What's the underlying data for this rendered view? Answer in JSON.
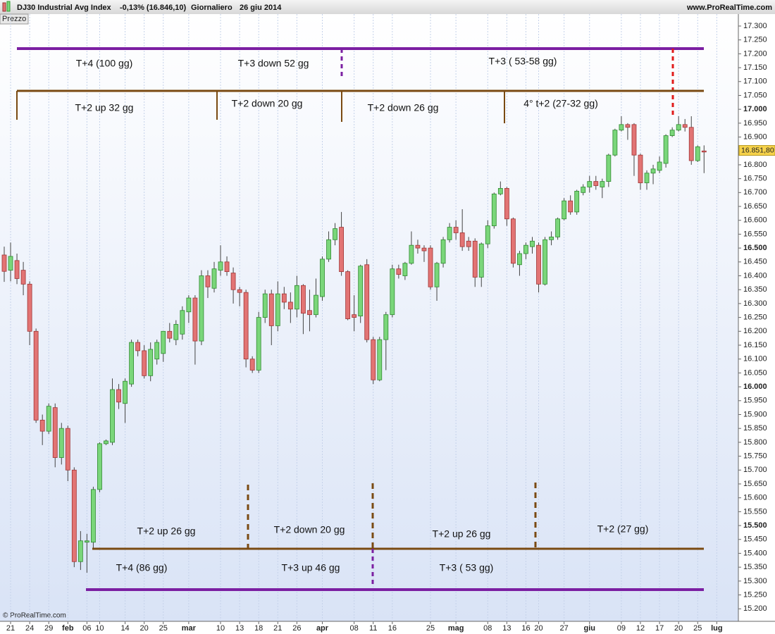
{
  "header": {
    "index": "DJ30 Industrial Avg Index",
    "change": "-0,13% (16.846,10)",
    "period": "Giornaliero",
    "date": "26 giu 2014",
    "site": "www.ProRealTime.com",
    "panel": "Prezzo",
    "copyright": "© ProRealTime.com"
  },
  "chart_data": {
    "type": "candlestick",
    "categories": [
      null,
      "21",
      null,
      null,
      "24",
      null,
      null,
      "29",
      null,
      null,
      "feb",
      null,
      null,
      "06",
      null,
      "10",
      null,
      null,
      null,
      "14",
      null,
      null,
      "20",
      null,
      null,
      "25",
      null,
      null,
      null,
      "mar",
      null,
      null,
      null,
      null,
      "10",
      null,
      null,
      "13",
      null,
      null,
      "18",
      null,
      null,
      "21",
      null,
      null,
      "26",
      null,
      null,
      null,
      "apr",
      null,
      null,
      null,
      null,
      "08",
      null,
      null,
      "11",
      null,
      null,
      "16",
      null,
      null,
      null,
      null,
      null,
      "25",
      null,
      null,
      null,
      "mag",
      null,
      null,
      null,
      null,
      "08",
      null,
      null,
      "13",
      null,
      null,
      "16",
      null,
      "20",
      null,
      null,
      null,
      "27",
      null,
      null,
      null,
      "giu",
      null,
      null,
      null,
      null,
      "09",
      null,
      null,
      "12",
      null,
      null,
      "17",
      null,
      null,
      "20",
      null,
      null,
      "25",
      null,
      null,
      "lug"
    ],
    "open": [
      16475,
      16420,
      16455,
      16420,
      16370,
      16200,
      15880,
      15840,
      15925,
      15745,
      15850,
      15700,
      15370,
      15440,
      15440,
      15630,
      15795,
      15800,
      15990,
      15940,
      16010,
      16160,
      16130,
      16040,
      16100,
      16120,
      16200,
      16170,
      16190,
      16270,
      16320,
      16165,
      16400,
      16355,
      16420,
      16450,
      16410,
      16350,
      16340,
      16100,
      16060,
      16250,
      16335,
      16220,
      16335,
      16305,
      16280,
      16365,
      16275,
      16260,
      16325,
      16460,
      16530,
      16575,
      16415,
      16260,
      16255,
      16440,
      16170,
      16025,
      16170,
      16260,
      16425,
      16400,
      16445,
      16510,
      16500,
      16500,
      16360,
      16445,
      16530,
      16575,
      16555,
      16525,
      16525,
      16395,
      16515,
      16580,
      16695,
      16715,
      16605,
      16440,
      16480,
      16505,
      16510,
      16370,
      16530,
      16540,
      16605,
      16670,
      16630,
      16700,
      16720,
      16740,
      16720,
      16740,
      16835,
      16925,
      16945,
      16945,
      16835,
      16735,
      16770,
      16780,
      16805,
      16905,
      16925,
      16945,
      16935,
      16815,
      16850,
      null,
      null
    ],
    "high": [
      16505,
      16520,
      16480,
      16450,
      16380,
      16210,
      15900,
      15940,
      15940,
      15870,
      15860,
      15710,
      15480,
      15470,
      15640,
      15800,
      15810,
      16030,
      16010,
      16030,
      16170,
      16170,
      16150,
      16160,
      16170,
      16200,
      16230,
      16240,
      16290,
      16330,
      16330,
      16420,
      16420,
      16450,
      16510,
      16470,
      16430,
      16360,
      16350,
      16110,
      16270,
      16350,
      16350,
      16380,
      16360,
      16340,
      16400,
      16370,
      16350,
      16390,
      16470,
      16560,
      16590,
      16630,
      16420,
      16330,
      16440,
      16460,
      16180,
      16180,
      16270,
      16440,
      16440,
      16450,
      16560,
      16530,
      16510,
      16510,
      16450,
      16540,
      16590,
      16600,
      16640,
      16540,
      16535,
      16520,
      16600,
      16700,
      16740,
      16720,
      16610,
      16490,
      16520,
      16540,
      16520,
      16540,
      16560,
      16610,
      16680,
      16690,
      16710,
      16730,
      16760,
      16760,
      16750,
      16840,
      16930,
      16975,
      16950,
      16950,
      16840,
      16780,
      16800,
      16830,
      16910,
      16935,
      16975,
      16965,
      16975,
      16870,
      16870,
      null,
      null
    ],
    "low": [
      16378,
      16380,
      16370,
      16330,
      16150,
      15870,
      15790,
      15830,
      15710,
      15720,
      15660,
      15350,
      15340,
      15330,
      15420,
      15620,
      15790,
      15790,
      15920,
      15870,
      16000,
      16110,
      16030,
      16020,
      16080,
      16090,
      16160,
      16150,
      16170,
      16230,
      16080,
      16150,
      16320,
      16340,
      16400,
      16400,
      16300,
      16290,
      16070,
      16050,
      16050,
      16230,
      16150,
      16200,
      16280,
      16230,
      16250,
      16190,
      16200,
      16250,
      16310,
      16450,
      16510,
      16400,
      16240,
      16200,
      16230,
      16160,
      16010,
      16020,
      16060,
      16250,
      16390,
      16385,
      16440,
      16480,
      16450,
      16350,
      16310,
      16430,
      16520,
      16530,
      16490,
      16490,
      16360,
      16360,
      16500,
      16570,
      16690,
      16580,
      16430,
      16400,
      16460,
      16480,
      16340,
      16365,
      16510,
      16530,
      16600,
      16620,
      16620,
      16690,
      16700,
      16710,
      16680,
      16720,
      16830,
      16920,
      16890,
      16760,
      16710,
      16710,
      16730,
      16770,
      16790,
      16900,
      16920,
      16920,
      16800,
      16810,
      16770,
      null,
      null
    ],
    "close": [
      16416,
      16470,
      16390,
      16370,
      16200,
      15880,
      15840,
      15930,
      15745,
      15850,
      15700,
      15370,
      15445,
      15445,
      15630,
      15795,
      15805,
      15990,
      15945,
      16020,
      16160,
      16130,
      16040,
      16135,
      16160,
      16200,
      16175,
      16225,
      16275,
      16320,
      16165,
      16400,
      16360,
      16425,
      16450,
      16415,
      16350,
      16340,
      16100,
      16060,
      16250,
      16335,
      16220,
      16335,
      16305,
      16280,
      16365,
      16265,
      16260,
      16330,
      16460,
      16530,
      16570,
      16415,
      16245,
      16250,
      16435,
      16170,
      16025,
      16170,
      16260,
      16425,
      16405,
      16445,
      16510,
      16500,
      16490,
      16360,
      16445,
      16530,
      16575,
      16555,
      16505,
      16505,
      16395,
      16515,
      16580,
      16695,
      16715,
      16605,
      16445,
      16480,
      16510,
      16525,
      16370,
      16530,
      16540,
      16605,
      16670,
      16630,
      16705,
      16720,
      16740,
      16725,
      16740,
      16835,
      16925,
      16945,
      16935,
      16835,
      16735,
      16770,
      16785,
      16810,
      16905,
      16925,
      16945,
      16935,
      16815,
      16865,
      16846,
      null,
      null
    ],
    "up_color": "#7ad67a",
    "down_color": "#e27474",
    "ylim": [
      15160,
      17338
    ],
    "yticks": [
      {
        "value": 15200,
        "label": "15.200"
      },
      {
        "value": 15250,
        "label": "15.250"
      },
      {
        "value": 15300,
        "label": "15.300"
      },
      {
        "value": 15350,
        "label": "15.350"
      },
      {
        "value": 15400,
        "label": "15.400"
      },
      {
        "value": 15450,
        "label": "15.450"
      },
      {
        "value": 15500,
        "label": "15.500"
      },
      {
        "value": 15550,
        "label": "15.550"
      },
      {
        "value": 15600,
        "label": "15.600"
      },
      {
        "value": 15650,
        "label": "15.650"
      },
      {
        "value": 15700,
        "label": "15.700"
      },
      {
        "value": 15750,
        "label": "15.750"
      },
      {
        "value": 15800,
        "label": "15.800"
      },
      {
        "value": 15850,
        "label": "15.850"
      },
      {
        "value": 15900,
        "label": "15.900"
      },
      {
        "value": 15950,
        "label": "15.950"
      },
      {
        "value": 16000,
        "label": "16.000"
      },
      {
        "value": 16050,
        "label": "16.050"
      },
      {
        "value": 16100,
        "label": "16.100"
      },
      {
        "value": 16150,
        "label": "16.150"
      },
      {
        "value": 16200,
        "label": "16.200"
      },
      {
        "value": 16250,
        "label": "16.250"
      },
      {
        "value": 16300,
        "label": "16.300"
      },
      {
        "value": 16350,
        "label": "16.350"
      },
      {
        "value": 16400,
        "label": "16.400"
      },
      {
        "value": 16450,
        "label": "16.450"
      },
      {
        "value": 16500,
        "label": "16.500"
      },
      {
        "value": 16550,
        "label": "16.550"
      },
      {
        "value": 16600,
        "label": "16.600"
      },
      {
        "value": 16650,
        "label": "16.650"
      },
      {
        "value": 16700,
        "label": "16.700"
      },
      {
        "value": 16750,
        "label": "16.750"
      },
      {
        "value": 16800,
        "label": "16.800"
      },
      {
        "value": 16850,
        "label": "16.850"
      },
      {
        "value": 16900,
        "label": "16.900"
      },
      {
        "value": 16950,
        "label": "16.950"
      },
      {
        "value": 17000,
        "label": "17.000"
      },
      {
        "value": 17050,
        "label": "17.050"
      },
      {
        "value": 17100,
        "label": "17.100"
      },
      {
        "value": 17150,
        "label": "17.150"
      },
      {
        "value": 17200,
        "label": "17.200"
      },
      {
        "value": 17250,
        "label": "17.250"
      },
      {
        "value": 17300,
        "label": "17.300"
      }
    ],
    "grid": "x",
    "last_price": {
      "value": 16851.8,
      "label": "16.851,80"
    },
    "annotations": [
      "T+4 (100 gg)",
      "T+3 down 52 gg",
      "T+3 ( 53-58 gg)",
      "T+2 up 32 gg",
      "T+2 down 20 gg",
      "T+2 down 26 gg",
      "4° t+2 (27-32 gg)",
      "T+2 up 26 gg",
      "T+2 down 20 gg",
      "T+2 up 26 gg",
      "T+2 (27 gg)",
      "T+4 (86 gg)",
      "T+3 up 46 gg",
      "T+3 ( 53 gg)"
    ]
  }
}
